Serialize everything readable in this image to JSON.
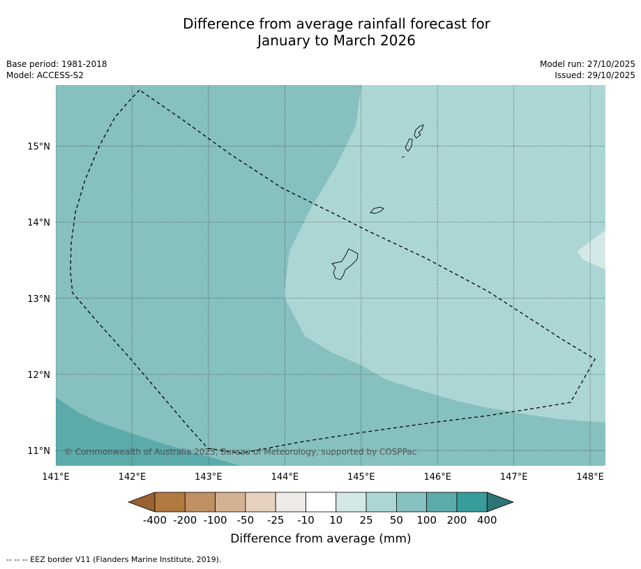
{
  "title": {
    "line1": "Difference from average rainfall forecast for",
    "line2": "January to March 2026"
  },
  "meta": {
    "base_period": "Base period: 1981-2018",
    "model": "Model: ACCESS-S2",
    "model_run": "Model run: 27/10/2025",
    "issued": "Issued: 29/10/2025"
  },
  "map": {
    "lon_range": [
      141.0,
      148.2
    ],
    "lat_range": [
      10.8,
      15.8
    ],
    "lon_ticks": [
      {
        "value": 141,
        "label": "141°E"
      },
      {
        "value": 142,
        "label": "142°E"
      },
      {
        "value": 143,
        "label": "143°E"
      },
      {
        "value": 144,
        "label": "144°E"
      },
      {
        "value": 145,
        "label": "145°E"
      },
      {
        "value": 146,
        "label": "146°E"
      },
      {
        "value": 147,
        "label": "147°E"
      },
      {
        "value": 148,
        "label": "148°E"
      }
    ],
    "lat_ticks": [
      {
        "value": 15,
        "label": "15°N"
      },
      {
        "value": 14,
        "label": "14°N"
      },
      {
        "value": 13,
        "label": "13°N"
      },
      {
        "value": 12,
        "label": "12°N"
      },
      {
        "value": 11,
        "label": "11°N"
      }
    ],
    "copyright": "© Commonwealth of Australia 2025, Bureau of Meteorology, supported by COSPPac"
  },
  "legend": {
    "title": "Difference from average (mm)",
    "tick_labels": [
      "-400",
      "-200",
      "-100",
      "-50",
      "-25",
      "-10",
      "10",
      "25",
      "50",
      "100",
      "200",
      "400"
    ],
    "colors": {
      "under": "#9a6232",
      "bins": [
        "#b07940",
        "#c09065",
        "#d4b192",
        "#e7d1bf",
        "#eeeae6",
        "#ffffff",
        "#d4e9e7",
        "#acd6d5",
        "#86c0bf",
        "#5cabab",
        "#389c9a"
      ],
      "over": "#2c7476"
    }
  },
  "footnote": "--  --  -- EEZ border V11 (Flanders Marine Institute, 2019)."
}
